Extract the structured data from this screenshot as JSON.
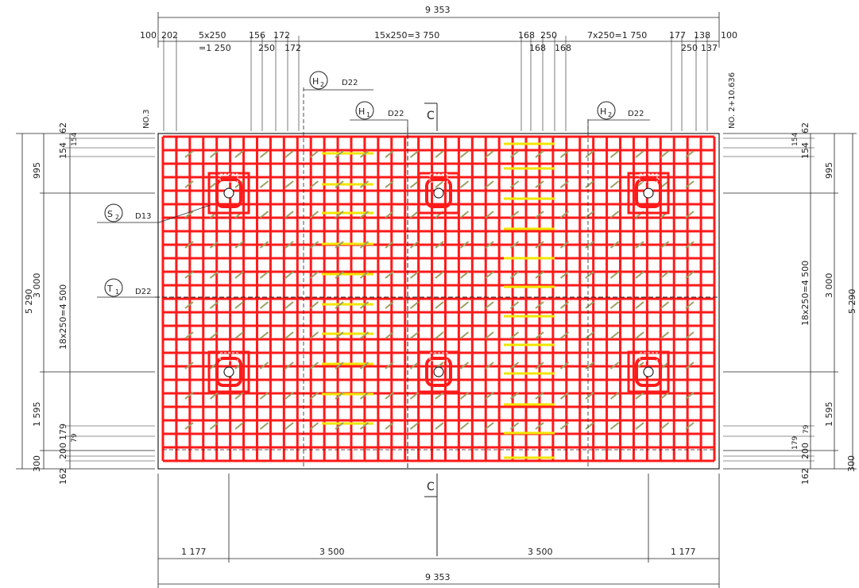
{
  "top_dims": {
    "overall": "9 353",
    "d100l": "100",
    "d202": "202",
    "d5x250": "5x250",
    "d1250": "=1 250",
    "d156": "156",
    "d250a": "250",
    "d172a": "172",
    "d172b": "172",
    "d15x250": "15x250=3 750",
    "d168a": "168",
    "d250b": "250",
    "d168b": "168",
    "d168c": "168",
    "d7x250": "7x250=1 750",
    "d177": "177",
    "d250c": "250",
    "d138": "138",
    "d137": "137",
    "d100r": "100"
  },
  "bottom_dims": {
    "d1177l": "1 177",
    "d3500a": "3 500",
    "d3500b": "3 500",
    "d1177r": "1 177",
    "overall": "9 353"
  },
  "left_dims": {
    "total": "5 290",
    "d995": "995",
    "d3000": "3 000",
    "d1595": "1 595",
    "d300": "300",
    "d62": "62",
    "d154a": "154",
    "d154b": "154",
    "d18x250": "18x250=4 500",
    "d179": "179",
    "d200": "200",
    "d79": "79",
    "d162": "162"
  },
  "right_dims": {
    "total": "5 290",
    "d995": "995",
    "d3000": "3 000",
    "d1595": "1 595",
    "d300": "300",
    "d62": "62",
    "d154a": "154",
    "d154b": "154",
    "d18x250": "18x250=4 500",
    "d179": "179",
    "d200": "200",
    "d79": "79",
    "d162": "162"
  },
  "labels": {
    "no3": "NO.3",
    "no2": "NO. 2+10.636",
    "section_top": "C",
    "section_bottom": "C"
  },
  "callouts": {
    "h2_left": {
      "mark": "H",
      "sub": "2",
      "spec": "D22"
    },
    "h1": {
      "mark": "H",
      "sub": "1",
      "spec": "D22"
    },
    "h2_right": {
      "mark": "H",
      "sub": "2",
      "spec": "D22"
    },
    "s2": {
      "mark": "S",
      "sub": "2",
      "spec": "D13"
    },
    "t1": {
      "mark": "T",
      "sub": "1",
      "spec": "D22"
    }
  },
  "colors": {
    "rebar": "#ff1a1a",
    "ties": "#9aa060",
    "highlight_bars": "#f2e600",
    "linework": "#222222"
  }
}
